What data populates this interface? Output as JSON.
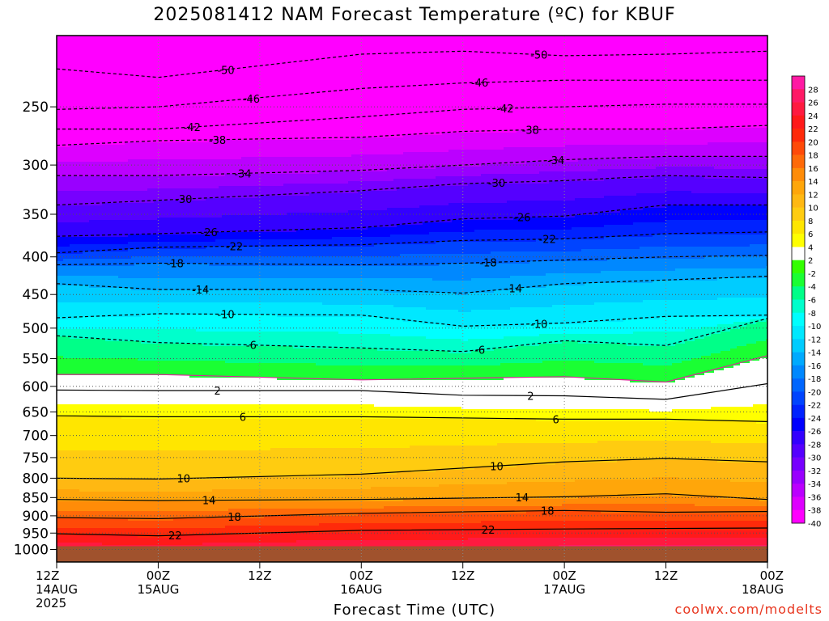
{
  "page": {
    "title": "2025081412 NAM Forecast Temperature (ºC) for KBUF",
    "credit": "coolwx.com/modelts"
  },
  "chart_data": {
    "type": "heatmap",
    "title": "2025081412 NAM Forecast Temperature (ºC) for KBUF",
    "xlabel": "Forecast Time (UTC)",
    "ylabel": "",
    "x_ticks": [
      {
        "hours": 0,
        "labels": [
          "12Z",
          "14AUG",
          "2025"
        ]
      },
      {
        "hours": 12,
        "labels": [
          "00Z",
          "15AUG"
        ]
      },
      {
        "hours": 24,
        "labels": [
          "12Z"
        ]
      },
      {
        "hours": 36,
        "labels": [
          "00Z",
          "16AUG"
        ]
      },
      {
        "hours": 48,
        "labels": [
          "12Z"
        ]
      },
      {
        "hours": 60,
        "labels": [
          "00Z",
          "17AUG"
        ]
      },
      {
        "hours": 72,
        "labels": [
          "12Z"
        ]
      },
      {
        "hours": 84,
        "labels": [
          "00Z",
          "18AUG"
        ]
      }
    ],
    "xlim_hours": [
      0,
      84
    ],
    "y_scale": "log",
    "ylim": [
      1040,
      200
    ],
    "y_ticks": [
      250,
      300,
      350,
      400,
      450,
      500,
      550,
      600,
      650,
      700,
      750,
      800,
      850,
      900,
      950,
      1000
    ],
    "ground_pressure": 990,
    "grid": true,
    "colorbar": {
      "placement": "right",
      "levels": [
        28,
        26,
        24,
        22,
        20,
        18,
        16,
        14,
        12,
        10,
        8,
        6,
        4,
        2,
        -2,
        -4,
        -6,
        -8,
        -10,
        -12,
        -14,
        -16,
        -18,
        -20,
        -22,
        -24,
        -26,
        -28,
        -30,
        -32,
        -34,
        -36,
        -38,
        -40
      ],
      "colors": [
        "#ff1aa3",
        "#ff1a66",
        "#ff1a40",
        "#ff1a1a",
        "#ff2a0a",
        "#ff4a08",
        "#ff6a08",
        "#ff8c08",
        "#ffa60a",
        "#ffb812",
        "#ffcc10",
        "#ffe600",
        "#ffff00",
        "#ffffff",
        "#33ff00",
        "#1aff33",
        "#00ff88",
        "#00ffcc",
        "#00ffff",
        "#00e8ff",
        "#00ccff",
        "#00aaff",
        "#0088ff",
        "#0066ff",
        "#0044ff",
        "#0022ff",
        "#0000ff",
        "#3300ff",
        "#5500ff",
        "#7700ff",
        "#9900ff",
        "#bb00ff",
        "#dd00ff",
        "#ff00ff"
      ]
    },
    "series": [
      {
        "value": 22,
        "points": [
          [
            0,
            952
          ],
          [
            12,
            958
          ],
          [
            36,
            942
          ],
          [
            60,
            938
          ],
          [
            84,
            935
          ]
        ]
      },
      {
        "value": 18,
        "points": [
          [
            0,
            905
          ],
          [
            12,
            908
          ],
          [
            36,
            893
          ],
          [
            60,
            885
          ],
          [
            72,
            890
          ],
          [
            84,
            888
          ]
        ]
      },
      {
        "value": 14,
        "points": [
          [
            0,
            855
          ],
          [
            12,
            858
          ],
          [
            36,
            855
          ],
          [
            60,
            848
          ],
          [
            72,
            840
          ],
          [
            84,
            855
          ]
        ]
      },
      {
        "value": 10,
        "points": [
          [
            0,
            800
          ],
          [
            12,
            802
          ],
          [
            36,
            790
          ],
          [
            48,
            775
          ],
          [
            60,
            760
          ],
          [
            72,
            752
          ],
          [
            84,
            760
          ]
        ]
      },
      {
        "value": 6,
        "points": [
          [
            0,
            658
          ],
          [
            12,
            660
          ],
          [
            36,
            660
          ],
          [
            60,
            665
          ],
          [
            72,
            665
          ],
          [
            84,
            670
          ]
        ]
      },
      {
        "value": 2,
        "points": [
          [
            0,
            607
          ],
          [
            12,
            608
          ],
          [
            36,
            608
          ],
          [
            48,
            617
          ],
          [
            60,
            618
          ],
          [
            72,
            625
          ],
          [
            84,
            595
          ]
        ]
      },
      {
        "value": -2,
        "points": [
          [
            0,
            578
          ],
          [
            12,
            578
          ],
          [
            36,
            588
          ],
          [
            60,
            582
          ],
          [
            72,
            592
          ],
          [
            84,
            545
          ]
        ]
      },
      {
        "value": -6,
        "points": [
          [
            0,
            512
          ],
          [
            12,
            523
          ],
          [
            36,
            532
          ],
          [
            48,
            538
          ],
          [
            60,
            520
          ],
          [
            72,
            528
          ],
          [
            84,
            485
          ]
        ]
      },
      {
        "value": -10,
        "points": [
          [
            0,
            484
          ],
          [
            12,
            478
          ],
          [
            36,
            480
          ],
          [
            48,
            497
          ],
          [
            60,
            492
          ],
          [
            72,
            482
          ],
          [
            84,
            480
          ]
        ]
      },
      {
        "value": -14,
        "points": [
          [
            0,
            435
          ],
          [
            12,
            443
          ],
          [
            36,
            443
          ],
          [
            48,
            448
          ],
          [
            60,
            435
          ],
          [
            72,
            430
          ],
          [
            84,
            425
          ]
        ]
      },
      {
        "value": -18,
        "points": [
          [
            0,
            410
          ],
          [
            12,
            408
          ],
          [
            36,
            410
          ],
          [
            48,
            408
          ],
          [
            60,
            404
          ],
          [
            72,
            400
          ],
          [
            84,
            398
          ]
        ]
      },
      {
        "value": -22,
        "points": [
          [
            0,
            395
          ],
          [
            12,
            388
          ],
          [
            36,
            385
          ],
          [
            48,
            380
          ],
          [
            60,
            378
          ],
          [
            72,
            372
          ],
          [
            84,
            370
          ]
        ]
      },
      {
        "value": -26,
        "points": [
          [
            0,
            375
          ],
          [
            12,
            372
          ],
          [
            36,
            365
          ],
          [
            48,
            355
          ],
          [
            60,
            352
          ],
          [
            72,
            340
          ],
          [
            84,
            340
          ]
        ]
      },
      {
        "value": -30,
        "points": [
          [
            0,
            340
          ],
          [
            12,
            335
          ],
          [
            36,
            325
          ],
          [
            48,
            318
          ],
          [
            60,
            315
          ],
          [
            72,
            310
          ],
          [
            84,
            312
          ]
        ]
      },
      {
        "value": -34,
        "points": [
          [
            0,
            310
          ],
          [
            12,
            310
          ],
          [
            36,
            305
          ],
          [
            48,
            300
          ],
          [
            60,
            295
          ],
          [
            72,
            292
          ],
          [
            84,
            292
          ]
        ]
      },
      {
        "value": -38,
        "points": [
          [
            0,
            282
          ],
          [
            12,
            278
          ],
          [
            36,
            275
          ],
          [
            48,
            270
          ],
          [
            60,
            268
          ],
          [
            72,
            268
          ],
          [
            84,
            265
          ]
        ]
      },
      {
        "value": -42,
        "points": [
          [
            0,
            268
          ],
          [
            12,
            268
          ],
          [
            36,
            258
          ],
          [
            48,
            252
          ],
          [
            60,
            250
          ],
          [
            72,
            248
          ],
          [
            84,
            248
          ]
        ]
      },
      {
        "value": -46,
        "points": [
          [
            0,
            252
          ],
          [
            12,
            250
          ],
          [
            36,
            236
          ],
          [
            48,
            232
          ],
          [
            60,
            230
          ],
          [
            72,
            230
          ],
          [
            84,
            230
          ]
        ]
      },
      {
        "value": -50,
        "points": [
          [
            0,
            222
          ],
          [
            12,
            228
          ],
          [
            36,
            212
          ],
          [
            48,
            210
          ],
          [
            60,
            213
          ],
          [
            72,
            212
          ],
          [
            84,
            210
          ]
        ]
      }
    ]
  }
}
